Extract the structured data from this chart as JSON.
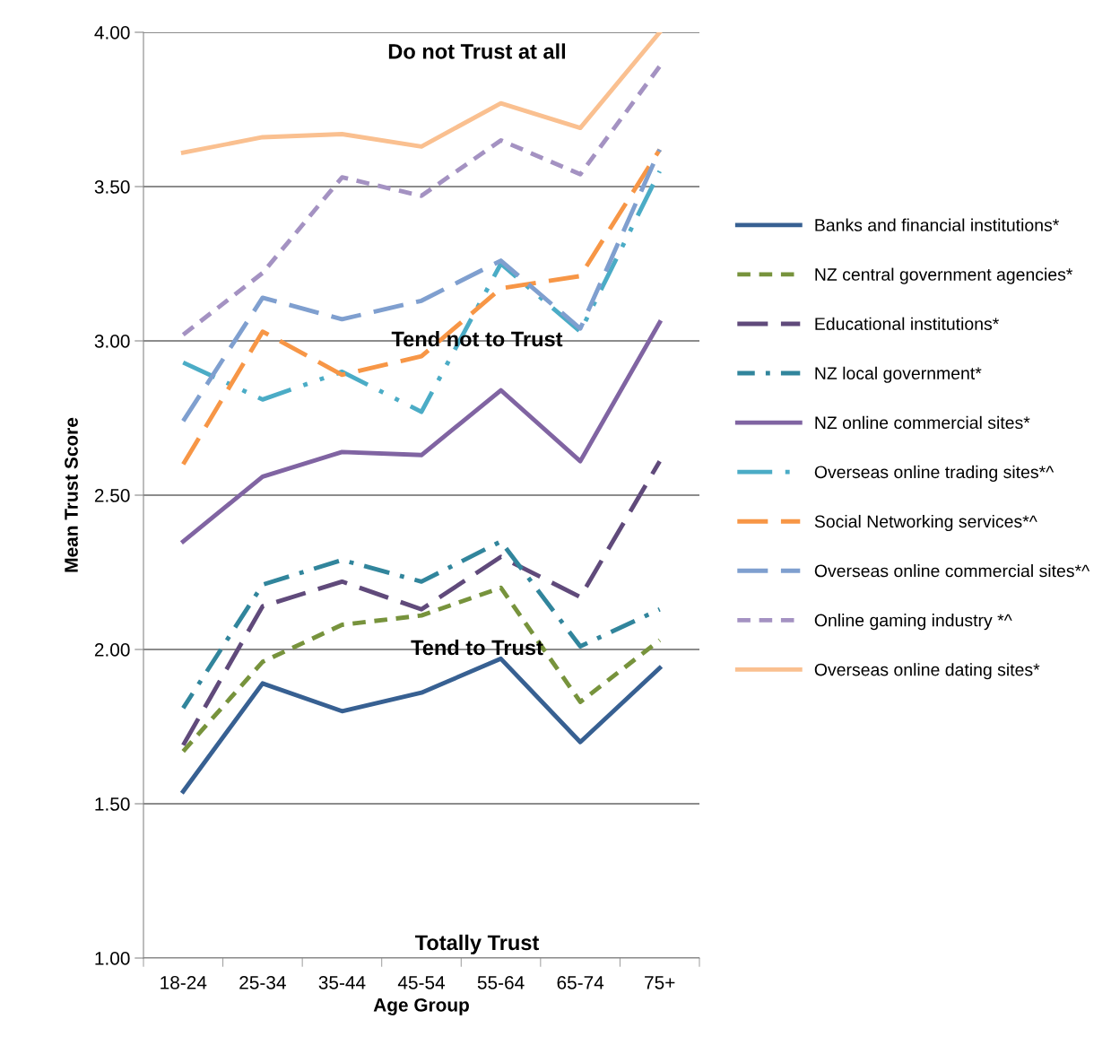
{
  "chart_data": {
    "type": "line",
    "xlabel": "Age Group",
    "ylabel": "Mean Trust Score",
    "categories": [
      "18-24",
      "25-34",
      "35-44",
      "45-54",
      "55-64",
      "65-74",
      "75+"
    ],
    "series": [
      {
        "name": "Banks and financial institutions*",
        "color": "#376092",
        "line_style": "solid",
        "values": [
          1.54,
          1.89,
          1.8,
          1.86,
          1.97,
          1.7,
          1.94
        ]
      },
      {
        "name": "NZ central government agencies*",
        "color": "#77933c",
        "line_style": "dashed",
        "values": [
          1.67,
          1.96,
          2.08,
          2.11,
          2.2,
          1.83,
          2.03
        ]
      },
      {
        "name": "Educational institutions*",
        "color": "#604a7b",
        "line_style": "longdash",
        "values": [
          1.69,
          2.14,
          2.22,
          2.13,
          2.3,
          2.17,
          2.61
        ]
      },
      {
        "name": "NZ local government*",
        "color": "#31859c",
        "line_style": "dashdot",
        "values": [
          1.81,
          2.21,
          2.29,
          2.22,
          2.35,
          2.01,
          2.13
        ]
      },
      {
        "name": "NZ online commercial sites*",
        "color": "#8064a2",
        "line_style": "solid",
        "values": [
          2.35,
          2.56,
          2.64,
          2.63,
          2.84,
          2.61,
          3.06
        ]
      },
      {
        "name": "Overseas online trading sites*^",
        "color": "#4bacc6",
        "line_style": "longdashdot",
        "values": [
          2.93,
          2.81,
          2.9,
          2.77,
          3.25,
          3.03,
          3.55
        ]
      },
      {
        "name": "Social Networking services*^",
        "color": "#f79646",
        "line_style": "longdash",
        "values": [
          2.6,
          3.03,
          2.89,
          2.95,
          3.17,
          3.21,
          3.62
        ]
      },
      {
        "name": "Overseas online commercial sites*^",
        "color": "#7f9fcf",
        "line_style": "longdash",
        "values": [
          2.74,
          3.14,
          3.07,
          3.13,
          3.26,
          3.04,
          3.62
        ]
      },
      {
        "name": "Online gaming industry *^",
        "color": "#a492c2",
        "line_style": "dashed",
        "values": [
          3.02,
          3.22,
          3.53,
          3.47,
          3.65,
          3.54,
          3.89
        ]
      },
      {
        "name": "Overseas online dating sites*",
        "color": "#fac090",
        "line_style": "solid",
        "values": [
          3.61,
          3.66,
          3.67,
          3.63,
          3.77,
          3.69,
          4.0
        ]
      }
    ],
    "ylim": [
      1.0,
      4.0
    ],
    "yticks": [
      {
        "value": 1.0,
        "label": "1.00"
      },
      {
        "value": 1.5,
        "label": "1.50"
      },
      {
        "value": 2.0,
        "label": "2.00"
      },
      {
        "value": 2.5,
        "label": "2.50"
      },
      {
        "value": 3.0,
        "label": "3.00"
      },
      {
        "value": 3.5,
        "label": "3.50"
      },
      {
        "value": 4.0,
        "label": "4.00"
      }
    ],
    "grid": "y",
    "legend": "right",
    "marker": "none",
    "annotations": [
      "Do not Trust at all",
      "Tend not to Trust",
      "Tend to Trust",
      "Totally Trust"
    ]
  }
}
